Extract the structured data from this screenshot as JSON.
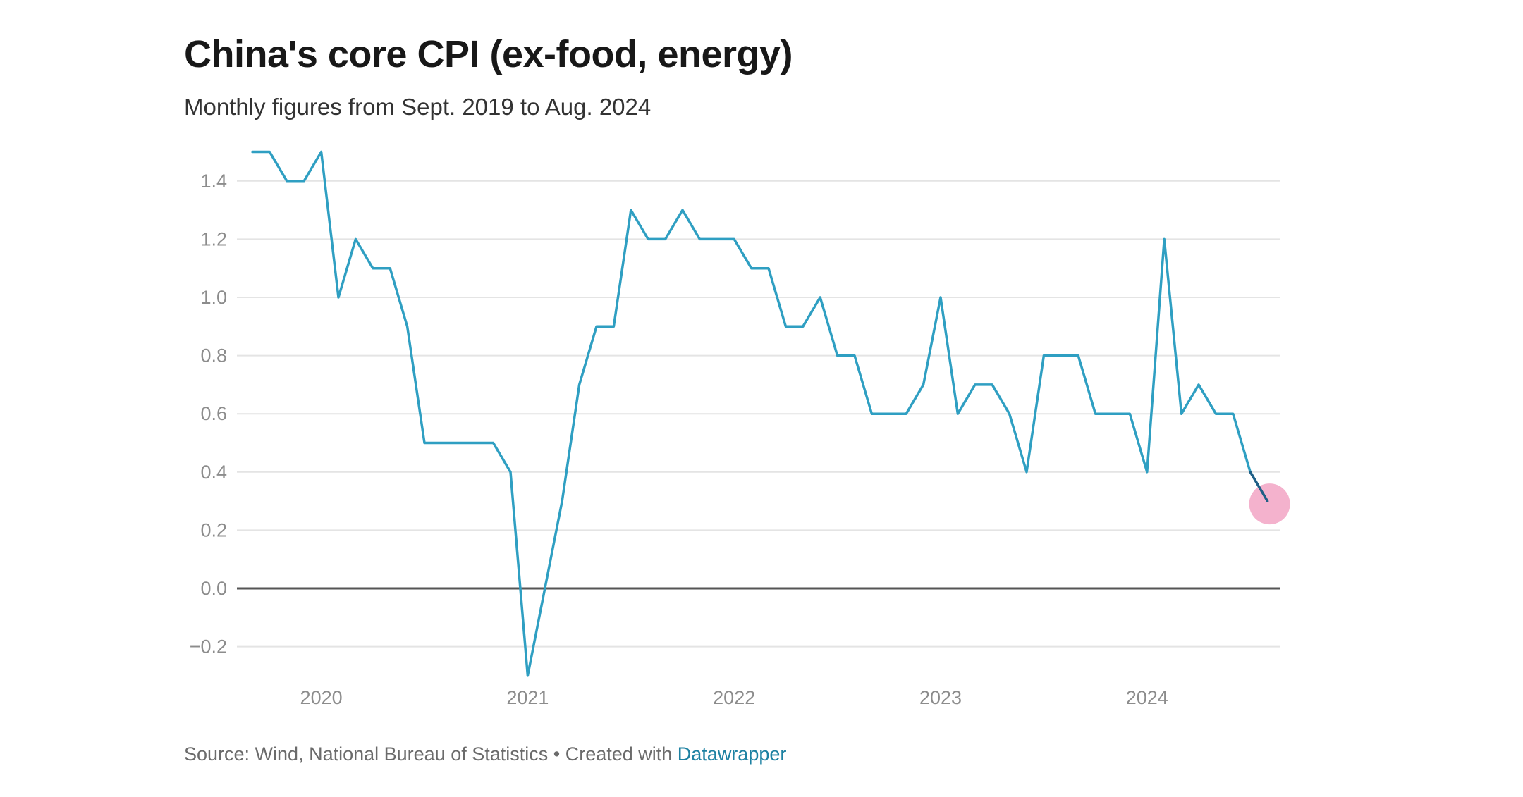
{
  "title": "China's core CPI (ex-food, energy)",
  "subtitle": "Monthly figures from Sept. 2019 to Aug. 2024",
  "footer": {
    "source_text": "Source: Wind, National Bureau of Statistics • Created with ",
    "link_text": "Datawrapper"
  },
  "colors": {
    "line": "#2f9fc2",
    "highlight": "#f2a4c4",
    "grid": "#e4e4e4",
    "zero_line": "#555555"
  },
  "chart_data": {
    "type": "line",
    "title": "China's core CPI (ex-food, energy)",
    "subtitle": "Monthly figures from Sept. 2019 to Aug. 2024",
    "xlabel": "",
    "ylabel": "",
    "ylim": [
      -0.3,
      1.5
    ],
    "yticks": [
      {
        "value": -0.2,
        "label": "−0.2"
      },
      {
        "value": 0.0,
        "label": "0.0"
      },
      {
        "value": 0.2,
        "label": "0.2"
      },
      {
        "value": 0.4,
        "label": "0.4"
      },
      {
        "value": 0.6,
        "label": "0.6"
      },
      {
        "value": 0.8,
        "label": "0.8"
      },
      {
        "value": 1.0,
        "label": "1.0"
      },
      {
        "value": 1.2,
        "label": "1.2"
      },
      {
        "value": 1.4,
        "label": "1.4"
      }
    ],
    "xticks": [
      {
        "index": 4,
        "label": "2020"
      },
      {
        "index": 16,
        "label": "2021"
      },
      {
        "index": 28,
        "label": "2022"
      },
      {
        "index": 40,
        "label": "2023"
      },
      {
        "index": 52,
        "label": "2024"
      }
    ],
    "grid": true,
    "highlight_last_point": true,
    "series": [
      {
        "name": "Core CPI",
        "start": "2019-09",
        "end": "2024-08",
        "values": [
          1.5,
          1.5,
          1.4,
          1.4,
          1.5,
          1.0,
          1.2,
          1.1,
          1.1,
          0.9,
          0.5,
          0.5,
          0.5,
          0.5,
          0.5,
          0.4,
          -0.3,
          0.0,
          0.3,
          0.7,
          0.9,
          0.9,
          1.3,
          1.2,
          1.2,
          1.3,
          1.2,
          1.2,
          1.2,
          1.1,
          1.1,
          0.9,
          0.9,
          1.0,
          0.8,
          0.8,
          0.6,
          0.6,
          0.6,
          0.7,
          1.0,
          0.6,
          0.7,
          0.7,
          0.6,
          0.4,
          0.8,
          0.8,
          0.8,
          0.6,
          0.6,
          0.6,
          0.4,
          1.2,
          0.6,
          0.7,
          0.6,
          0.6,
          0.4,
          0.3
        ]
      }
    ]
  }
}
